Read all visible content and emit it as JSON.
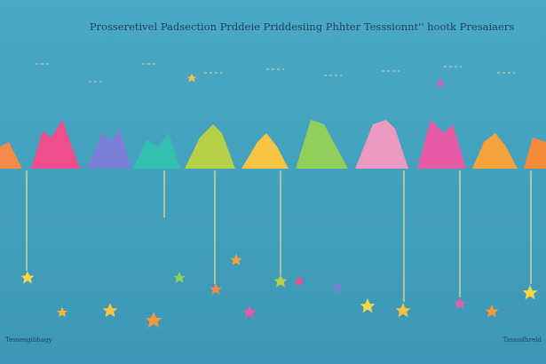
{
  "header": {
    "title": "Prosseretivel Padsection Prddeie Priddesiing Phhter Tesssionnt'' hootk Presaiaers"
  },
  "footer": {
    "left": "Tessengibbagy",
    "right": "Tsssssfhreld"
  }
}
